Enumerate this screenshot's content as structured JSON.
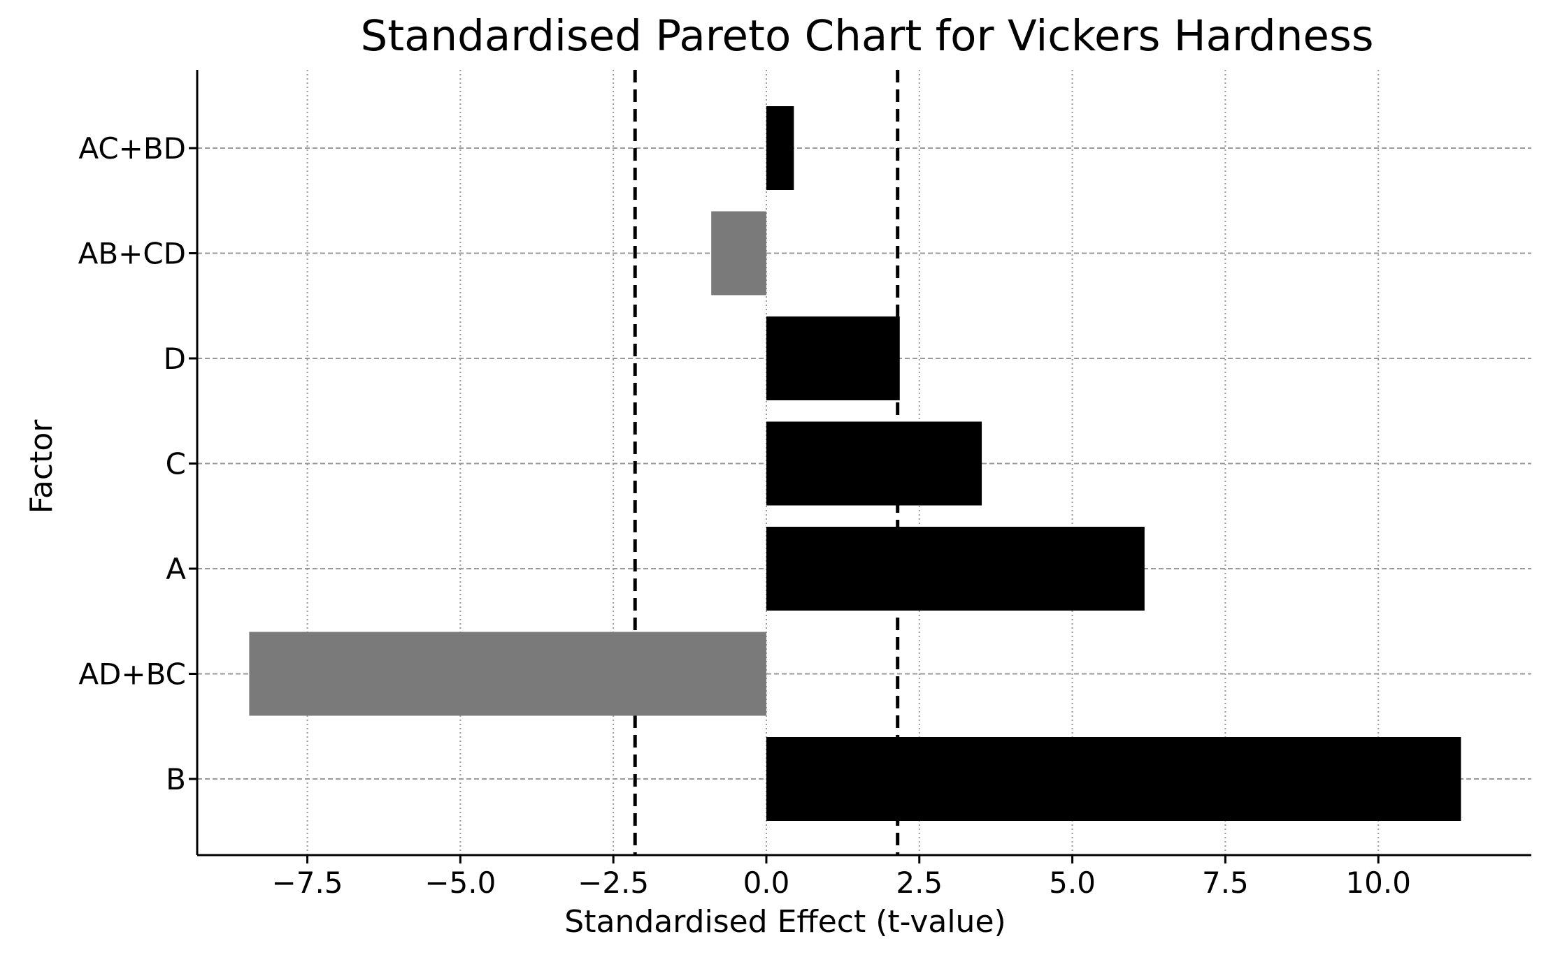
{
  "chart_data": {
    "type": "bar",
    "orientation": "horizontal",
    "title": "Standardised Pareto Chart for Vickers Hardness",
    "xlabel": "Standardised Effect (t-value)",
    "ylabel": "Factor",
    "categories": [
      "B",
      "AD+BC",
      "A",
      "C",
      "D",
      "AB+CD",
      "AC+BD"
    ],
    "values": [
      11.35,
      -8.45,
      6.18,
      3.52,
      2.18,
      -0.9,
      0.45
    ],
    "xlim": [
      -9.3,
      12.5
    ],
    "xticks": [
      -7.5,
      -5.0,
      -2.5,
      0.0,
      2.5,
      5.0,
      7.5,
      10.0
    ],
    "xtick_labels": [
      "−7.5",
      "−5.0",
      "−2.5",
      "0.0",
      "2.5",
      "5.0",
      "7.5",
      "10.0"
    ],
    "critical_values": [
      -2.145,
      2.145
    ],
    "grid": true,
    "colors": {
      "positive": "#000000",
      "negative": "#7a7a7a",
      "grid": "#9a9a9a",
      "critical": "#000000"
    }
  }
}
